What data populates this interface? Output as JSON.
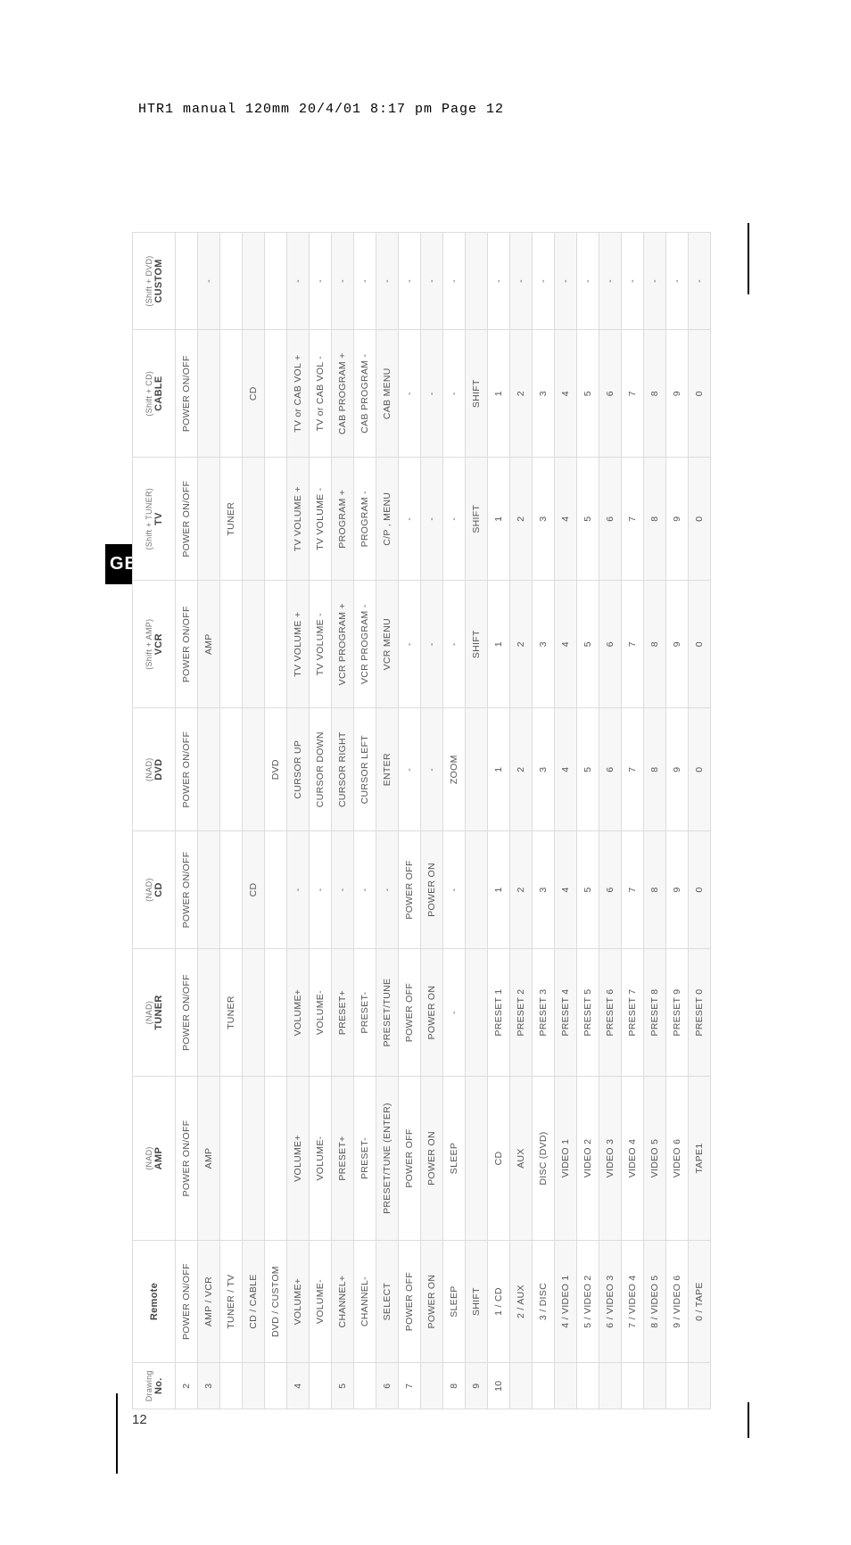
{
  "header_text": "HTR1 manual 120mm  20/4/01  8:17 pm  Page 12",
  "gb_label": "GB",
  "page_number": "12",
  "table": {
    "columns": [
      {
        "sub": "Drawing",
        "main": "No."
      },
      {
        "sub": "",
        "main": "Remote"
      },
      {
        "sub": "(NAD)",
        "main": "AMP"
      },
      {
        "sub": "(NAD)",
        "main": "TUNER"
      },
      {
        "sub": "(NAD)",
        "main": "CD"
      },
      {
        "sub": "(NAD)",
        "main": "DVD"
      },
      {
        "sub": "(Shift + AMP)",
        "main": "VCR"
      },
      {
        "sub": "(Shift + TUNER)",
        "main": "TV"
      },
      {
        "sub": "(Shift + CD)",
        "main": "CABLE"
      },
      {
        "sub": "(Shift + DVD)",
        "main": "CUSTOM"
      }
    ],
    "col_widths": [
      "45px",
      "120px",
      "160px",
      "125px",
      "115px",
      "120px",
      "125px",
      "120px",
      "125px",
      "95px"
    ],
    "striped_bg": "#f7f7f7",
    "border_color": "#dcdcdc",
    "text_color": "#555",
    "rows": [
      {
        "striped": false,
        "cells": [
          "2",
          "POWER ON/OFF",
          "POWER ON/OFF",
          "POWER ON/OFF",
          "POWER ON/OFF",
          "POWER ON/OFF",
          "POWER ON/OFF",
          "POWER ON/OFF",
          "POWER ON/OFF",
          ""
        ]
      },
      {
        "striped": true,
        "cells": [
          "3",
          "AMP / VCR",
          "AMP",
          "",
          "",
          "",
          "AMP",
          "",
          "",
          "-"
        ]
      },
      {
        "striped": false,
        "cells": [
          "",
          "TUNER / TV",
          "",
          "TUNER",
          "",
          "",
          "",
          "TUNER",
          "",
          ""
        ]
      },
      {
        "striped": true,
        "cells": [
          "",
          "CD / CABLE",
          "",
          "",
          "CD",
          "",
          "",
          "",
          "CD",
          ""
        ]
      },
      {
        "striped": false,
        "cells": [
          "",
          "DVD / CUSTOM",
          "",
          "",
          "",
          "DVD",
          "",
          "",
          "",
          ""
        ]
      },
      {
        "striped": true,
        "cells": [
          "4",
          "VOLUME+",
          "VOLUME+",
          "VOLUME+",
          "-",
          "CURSOR UP",
          "TV VOLUME +",
          "TV VOLUME +",
          "TV or CAB VOL +",
          "-"
        ]
      },
      {
        "striped": false,
        "cells": [
          "",
          "VOLUME-",
          "VOLUME-",
          "VOLUME-",
          "-",
          "CURSOR DOWN",
          "TV VOLUME -",
          "TV VOLUME -",
          "TV or CAB VOL -",
          "-"
        ]
      },
      {
        "striped": true,
        "cells": [
          "5",
          "CHANNEL+",
          "PRESET+",
          "PRESET+",
          "-",
          "CURSOR RIGHT",
          "VCR PROGRAM +",
          "PROGRAM +",
          "CAB PROGRAM +",
          "-"
        ]
      },
      {
        "striped": false,
        "cells": [
          "",
          "CHANNEL-",
          "PRESET-",
          "PRESET-",
          "-",
          "CURSOR LEFT",
          "VCR PROGRAM -",
          "PROGRAM -",
          "CAB PROGRAM -",
          "-"
        ]
      },
      {
        "striped": true,
        "cells": [
          "6",
          "SELECT",
          "PRESET/TUNE (ENTER)",
          "PRESET/TUNE",
          "-",
          "ENTER",
          "VCR MENU",
          "C/P , MENU",
          "CAB MENU",
          "-"
        ]
      },
      {
        "striped": false,
        "cells": [
          "7",
          "POWER OFF",
          "POWER OFF",
          "POWER OFF",
          "POWER OFF",
          "-",
          "-",
          "-",
          "-",
          "-"
        ]
      },
      {
        "striped": true,
        "cells": [
          "",
          "POWER ON",
          "POWER ON",
          "POWER ON",
          "POWER ON",
          "-",
          "-",
          "-",
          "-",
          "-"
        ]
      },
      {
        "striped": false,
        "cells": [
          "8",
          "SLEEP",
          "SLEEP",
          "-",
          "-",
          "ZOOM",
          "-",
          "-",
          "-",
          "-"
        ]
      },
      {
        "striped": true,
        "cells": [
          "9",
          "SHIFT",
          "",
          "",
          "",
          "",
          "SHIFT",
          "SHIFT",
          "SHIFT",
          ""
        ]
      },
      {
        "striped": false,
        "cells": [
          "10",
          "1 / CD",
          "CD",
          "PRESET 1",
          "1",
          "1",
          "1",
          "1",
          "1",
          "-"
        ]
      },
      {
        "striped": true,
        "cells": [
          "",
          "2 / AUX",
          "AUX",
          "PRESET 2",
          "2",
          "2",
          "2",
          "2",
          "2",
          "-"
        ]
      },
      {
        "striped": false,
        "cells": [
          "",
          "3 / DISC",
          "DISC (DVD)",
          "PRESET 3",
          "3",
          "3",
          "3",
          "3",
          "3",
          "-"
        ]
      },
      {
        "striped": true,
        "cells": [
          "",
          "4 / VIDEO 1",
          "VIDEO 1",
          "PRESET 4",
          "4",
          "4",
          "4",
          "4",
          "4",
          "-"
        ]
      },
      {
        "striped": false,
        "cells": [
          "",
          "5 / VIDEO 2",
          "VIDEO 2",
          "PRESET 5",
          "5",
          "5",
          "5",
          "5",
          "5",
          "-"
        ]
      },
      {
        "striped": true,
        "cells": [
          "",
          "6 / VIDEO 3",
          "VIDEO 3",
          "PRESET 6",
          "6",
          "6",
          "6",
          "6",
          "6",
          "-"
        ]
      },
      {
        "striped": false,
        "cells": [
          "",
          "7 / VIDEO 4",
          "VIDEO 4",
          "PRESET 7",
          "7",
          "7",
          "7",
          "7",
          "7",
          "-"
        ]
      },
      {
        "striped": true,
        "cells": [
          "",
          "8 / VIDEO 5",
          "VIDEO 5",
          "PRESET 8",
          "8",
          "8",
          "8",
          "8",
          "8",
          "-"
        ]
      },
      {
        "striped": false,
        "cells": [
          "",
          "9 / VIDEO 6",
          "VIDEO 6",
          "PRESET 9",
          "9",
          "9",
          "9",
          "9",
          "9",
          "-"
        ]
      },
      {
        "striped": true,
        "cells": [
          "",
          "0 / TAPE",
          "TAPE1",
          "PRESET 0",
          "0",
          "0",
          "0",
          "0",
          "0",
          "-"
        ]
      }
    ]
  }
}
